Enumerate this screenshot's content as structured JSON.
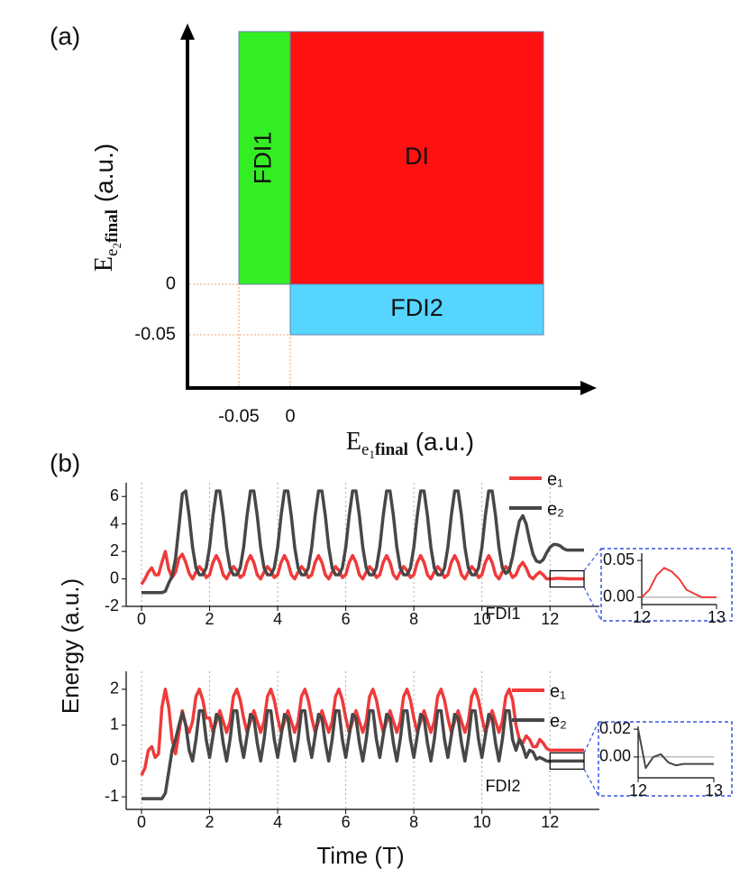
{
  "chart_data": [
    {
      "type": "region",
      "label": "(a)",
      "xlabel": [
        "E",
        "e",
        "1",
        "final",
        " (a.u.)"
      ],
      "ylabel": [
        "E",
        "e",
        "2",
        "final",
        " (a.u.)"
      ],
      "xticks": [
        {
          "value": -0.05,
          "label": "-0.05"
        },
        0
      ],
      "yticks": [
        {
          "value": -0.05,
          "label": "-0.05"
        },
        0
      ],
      "regions": [
        {
          "label": "FDI1",
          "color": "#33ee22",
          "x": [
            -0.05,
            0
          ],
          "y": [
            0,
            null
          ]
        },
        {
          "label": "DI",
          "color": "#ff1111",
          "x": [
            0,
            null
          ],
          "y": [
            0,
            null
          ]
        },
        {
          "label": "FDI2",
          "color": "#55d5ff",
          "x": [
            0,
            null
          ],
          "y": [
            -0.05,
            0
          ]
        }
      ]
    },
    {
      "type": "line",
      "label": "(b)",
      "ylabel": "Energy (a.u.)",
      "annotation": "FDI1",
      "grid": "x",
      "legend": "upper right",
      "xlim": [
        -0.45,
        13.45
      ],
      "ylim": [
        -2,
        7
      ],
      "xticks": [
        0,
        2,
        4,
        6,
        8,
        10,
        12
      ],
      "yticks": [
        -2,
        0,
        2,
        4,
        6
      ],
      "x": [
        0,
        0.1,
        0.2,
        0.3,
        0.4,
        0.5,
        0.6,
        0.7,
        0.8,
        0.9,
        1,
        1.1,
        1.2,
        1.3,
        1.4,
        1.5,
        1.6,
        1.7,
        1.8,
        1.9,
        2,
        2.1,
        2.2,
        2.3,
        2.4,
        2.5,
        2.6,
        2.7,
        2.8,
        2.9,
        3,
        3.1,
        3.2,
        3.3,
        3.4,
        3.5,
        3.6,
        3.7,
        3.8,
        3.9,
        4,
        4.1,
        4.2,
        4.3,
        4.4,
        4.5,
        4.6,
        4.7,
        4.8,
        4.9,
        5,
        5.1,
        5.2,
        5.3,
        5.4,
        5.5,
        5.6,
        5.7,
        5.8,
        5.9,
        6,
        6.1,
        6.2,
        6.3,
        6.4,
        6.5,
        6.6,
        6.7,
        6.8,
        6.9,
        7,
        7.1,
        7.2,
        7.3,
        7.4,
        7.5,
        7.6,
        7.7,
        7.8,
        7.9,
        8,
        8.1,
        8.2,
        8.3,
        8.4,
        8.5,
        8.6,
        8.7,
        8.8,
        8.9,
        9,
        9.1,
        9.2,
        9.3,
        9.4,
        9.5,
        9.6,
        9.7,
        9.8,
        9.9,
        10,
        10.1,
        10.2,
        10.3,
        10.4,
        10.5,
        10.6,
        10.7,
        10.8,
        10.9,
        11,
        11.1,
        11.2,
        11.3,
        11.4,
        11.5,
        11.6,
        11.7,
        11.8,
        11.9,
        12,
        12.1,
        12.2,
        12.3,
        12.4,
        12.5,
        12.6,
        12.7,
        12.8,
        12.9,
        13
      ],
      "series": [
        {
          "name": "e₁",
          "color": "#f03a3a",
          "values": [
            -0.4,
            0.0,
            0.5,
            0.8,
            0.3,
            0.3,
            1.2,
            2.0,
            0.7,
            0.1,
            0.5,
            1.5,
            1.8,
            1.2,
            0.4,
            0.0,
            0.5,
            0.9,
            0.6,
            0.1,
            0.3,
            1.2,
            1.7,
            1.2,
            0.3,
            0.0,
            0.5,
            0.9,
            0.6,
            0.1,
            0.3,
            1.2,
            1.7,
            1.2,
            0.3,
            0.0,
            0.5,
            0.9,
            0.6,
            0.1,
            0.3,
            1.2,
            1.7,
            1.2,
            0.3,
            0.0,
            0.5,
            0.9,
            0.6,
            0.1,
            0.3,
            1.2,
            1.7,
            1.2,
            0.3,
            0.0,
            0.5,
            0.9,
            0.6,
            0.1,
            0.3,
            1.2,
            1.7,
            1.2,
            0.3,
            0.0,
            0.5,
            0.9,
            0.6,
            0.1,
            0.3,
            1.2,
            1.7,
            1.2,
            0.3,
            0.0,
            0.5,
            0.9,
            0.6,
            0.1,
            0.3,
            1.2,
            1.7,
            1.2,
            0.3,
            0.0,
            0.5,
            0.9,
            0.6,
            0.1,
            0.3,
            1.2,
            1.7,
            1.2,
            0.3,
            0.0,
            0.5,
            0.9,
            0.6,
            0.1,
            0.3,
            1.2,
            1.7,
            1.2,
            0.3,
            0.0,
            0.5,
            0.9,
            0.6,
            0.1,
            0.3,
            0.9,
            1.2,
            0.8,
            0.2,
            0.0,
            0.3,
            0.5,
            0.3,
            0.0,
            0.0,
            0.02,
            0.04,
            0.04,
            0.03,
            0.01,
            0.0,
            0.0,
            0.0,
            0.0,
            0.0
          ]
        },
        {
          "name": "e₂",
          "color": "#474747",
          "values": [
            -1,
            -1,
            -1,
            -1,
            -1,
            -1,
            -1,
            -0.9,
            -0.3,
            0.2,
            1.5,
            3.8,
            6.2,
            6.4,
            4.6,
            2.3,
            0.8,
            0.3,
            0.3,
            0.8,
            2.3,
            4.6,
            6.4,
            6.4,
            4.6,
            2.3,
            0.8,
            0.3,
            0.3,
            0.8,
            2.3,
            4.6,
            6.4,
            6.4,
            4.6,
            2.3,
            0.8,
            0.3,
            0.3,
            0.8,
            2.3,
            4.6,
            6.4,
            6.4,
            4.6,
            2.3,
            0.8,
            0.3,
            0.3,
            0.8,
            2.3,
            4.6,
            6.4,
            6.4,
            4.6,
            2.3,
            0.8,
            0.3,
            0.3,
            0.8,
            2.3,
            4.6,
            6.4,
            6.4,
            4.6,
            2.3,
            0.8,
            0.3,
            0.3,
            0.8,
            2.3,
            4.6,
            6.4,
            6.4,
            4.6,
            2.3,
            0.8,
            0.3,
            0.3,
            0.8,
            2.3,
            4.6,
            6.4,
            6.4,
            4.6,
            2.3,
            0.8,
            0.3,
            0.3,
            0.8,
            2.3,
            4.6,
            6.4,
            6.4,
            4.6,
            2.3,
            0.8,
            0.3,
            0.3,
            0.8,
            2.3,
            4.6,
            6.4,
            6.4,
            4.6,
            2.3,
            0.8,
            0.4,
            0.6,
            1.6,
            3.0,
            4.2,
            4.6,
            4.0,
            2.8,
            1.8,
            1.3,
            1.2,
            1.4,
            1.9,
            2.3,
            2.5,
            2.5,
            2.4,
            2.2,
            2.1,
            2.1,
            2.1,
            2.1,
            2.1,
            2.1
          ]
        }
      ]
    },
    {
      "type": "line",
      "xlabel": "Time (T)",
      "annotation": "FDI2",
      "grid": "x",
      "legend": "upper right",
      "xlim": [
        -0.45,
        13.45
      ],
      "ylim": [
        -1.35,
        2.5
      ],
      "xticks": [
        0,
        2,
        4,
        6,
        8,
        10,
        12
      ],
      "yticks": [
        -1,
        0,
        1,
        2
      ],
      "x": [
        0,
        0.1,
        0.2,
        0.3,
        0.4,
        0.5,
        0.6,
        0.7,
        0.8,
        0.9,
        1,
        1.1,
        1.2,
        1.3,
        1.4,
        1.5,
        1.6,
        1.7,
        1.8,
        1.9,
        2,
        2.1,
        2.2,
        2.3,
        2.4,
        2.5,
        2.6,
        2.7,
        2.8,
        2.9,
        3,
        3.1,
        3.2,
        3.3,
        3.4,
        3.5,
        3.6,
        3.7,
        3.8,
        3.9,
        4,
        4.1,
        4.2,
        4.3,
        4.4,
        4.5,
        4.6,
        4.7,
        4.8,
        4.9,
        5,
        5.1,
        5.2,
        5.3,
        5.4,
        5.5,
        5.6,
        5.7,
        5.8,
        5.9,
        6,
        6.1,
        6.2,
        6.3,
        6.4,
        6.5,
        6.6,
        6.7,
        6.8,
        6.9,
        7,
        7.1,
        7.2,
        7.3,
        7.4,
        7.5,
        7.6,
        7.7,
        7.8,
        7.9,
        8,
        8.1,
        8.2,
        8.3,
        8.4,
        8.5,
        8.6,
        8.7,
        8.8,
        8.9,
        9,
        9.1,
        9.2,
        9.3,
        9.4,
        9.5,
        9.6,
        9.7,
        9.8,
        9.9,
        10,
        10.1,
        10.2,
        10.3,
        10.4,
        10.5,
        10.6,
        10.7,
        10.8,
        10.9,
        11,
        11.1,
        11.2,
        11.3,
        11.4,
        11.5,
        11.6,
        11.7,
        11.8,
        11.9,
        12,
        12.1,
        12.2,
        12.3,
        12.4,
        12.5,
        12.6,
        12.7,
        12.8,
        12.9,
        13
      ],
      "series": [
        {
          "name": "e₁",
          "color": "#f03a3a",
          "values": [
            -0.4,
            -0.2,
            0.3,
            0.4,
            0.1,
            0.2,
            1.5,
            2.0,
            1.5,
            0.6,
            0.2,
            0.8,
            1.4,
            1.0,
            0.8,
            1.1,
            1.8,
            2.0,
            1.7,
            1.2,
            1.2,
            0.8,
            1.1,
            1.4,
            1.1,
            0.8,
            1.1,
            1.8,
            2.0,
            1.7,
            1.2,
            0.8,
            1.1,
            1.4,
            1.1,
            0.8,
            1.1,
            1.8,
            2.0,
            1.7,
            1.2,
            0.8,
            1.1,
            1.4,
            1.1,
            0.8,
            1.1,
            1.8,
            2.0,
            1.7,
            1.2,
            0.8,
            1.1,
            1.4,
            1.1,
            0.8,
            1.1,
            1.8,
            2.0,
            1.7,
            1.2,
            0.8,
            1.1,
            1.4,
            1.1,
            0.8,
            1.1,
            1.8,
            2.0,
            1.7,
            1.2,
            0.8,
            1.1,
            1.4,
            1.1,
            0.8,
            1.1,
            1.8,
            2.0,
            1.7,
            1.2,
            0.8,
            1.1,
            1.4,
            1.1,
            0.8,
            1.1,
            1.8,
            2.0,
            1.7,
            1.2,
            0.8,
            1.1,
            1.4,
            1.1,
            0.8,
            1.1,
            1.8,
            2.0,
            1.7,
            1.2,
            0.8,
            1.1,
            1.4,
            1.1,
            0.8,
            1.1,
            1.8,
            2.0,
            1.7,
            1.0,
            0.6,
            0.5,
            0.7,
            0.6,
            0.4,
            0.4,
            0.6,
            0.5,
            0.35,
            0.3,
            0.3,
            0.3,
            0.3,
            0.3,
            0.3,
            0.3,
            0.3,
            0.3,
            0.3,
            0.3
          ]
        },
        {
          "name": "e₂",
          "color": "#474747",
          "values": [
            -1.05,
            -1.05,
            -1.05,
            -1.05,
            -1.05,
            -1.05,
            -1.05,
            -0.9,
            -0.3,
            0.3,
            0.6,
            1.0,
            1.35,
            1.0,
            0.3,
            0.0,
            0.6,
            1.4,
            1.4,
            0.6,
            0.1,
            0.7,
            1.3,
            1.2,
            0.5,
            0.0,
            0.6,
            1.4,
            1.4,
            0.6,
            0.1,
            0.7,
            1.3,
            1.2,
            0.5,
            0.0,
            0.6,
            1.4,
            1.4,
            0.6,
            0.1,
            0.7,
            1.3,
            1.2,
            0.5,
            0.0,
            0.6,
            1.4,
            1.4,
            0.6,
            0.1,
            0.7,
            1.3,
            1.2,
            0.5,
            0.0,
            0.6,
            1.4,
            1.4,
            0.6,
            0.1,
            0.7,
            1.3,
            1.2,
            0.5,
            0.0,
            0.6,
            1.4,
            1.4,
            0.6,
            0.1,
            0.7,
            1.3,
            1.2,
            0.5,
            0.0,
            0.6,
            1.4,
            1.4,
            0.6,
            0.1,
            0.7,
            1.3,
            1.2,
            0.5,
            0.0,
            0.6,
            1.4,
            1.4,
            0.6,
            0.1,
            0.7,
            1.3,
            1.2,
            0.5,
            0.0,
            0.6,
            1.4,
            1.4,
            0.6,
            0.1,
            0.7,
            1.3,
            1.2,
            0.5,
            0.0,
            0.6,
            1.4,
            1.4,
            0.6,
            0.3,
            0.6,
            0.4,
            0.1,
            0.3,
            0.25,
            0.05,
            0.1,
            0.05,
            0.0,
            -0.01,
            0.0,
            0.0,
            0.0,
            0.0,
            0.0,
            0.0,
            0.0,
            0.0,
            0.0,
            0.0
          ]
        }
      ]
    },
    {
      "type": "line",
      "zero_line": true,
      "xlim": [
        12,
        13
      ],
      "ylim": [
        -0.01,
        0.06
      ],
      "xticks": [
        12,
        13
      ],
      "yticks": [
        {
          "value": 0,
          "label": "0.00"
        },
        {
          "value": 0.05,
          "label": "0.05"
        }
      ],
      "x": [
        12,
        12.1,
        12.2,
        12.3,
        12.4,
        12.5,
        12.6,
        12.7,
        12.8,
        12.9,
        13
      ],
      "series": [
        {
          "color": "#f03a3a",
          "values": [
            0.0,
            0.01,
            0.03,
            0.04,
            0.035,
            0.025,
            0.01,
            0.005,
            0.0,
            0.0,
            0.0
          ]
        }
      ]
    },
    {
      "type": "line",
      "zero_line": true,
      "xlim": [
        12,
        13
      ],
      "ylim": [
        -0.015,
        0.022
      ],
      "xticks": [
        12,
        13
      ],
      "yticks": [
        {
          "value": 0,
          "label": "0.00"
        },
        {
          "value": 0.02,
          "label": "0.02"
        }
      ],
      "x": [
        12,
        12.1,
        12.2,
        12.3,
        12.4,
        12.5,
        12.6,
        12.7,
        12.8,
        12.9,
        13
      ],
      "series": [
        {
          "color": "#474747",
          "values": [
            0.02,
            -0.008,
            0.0,
            0.002,
            -0.004,
            -0.006,
            -0.005,
            -0.005,
            -0.005,
            -0.005,
            -0.005
          ]
        }
      ]
    }
  ]
}
